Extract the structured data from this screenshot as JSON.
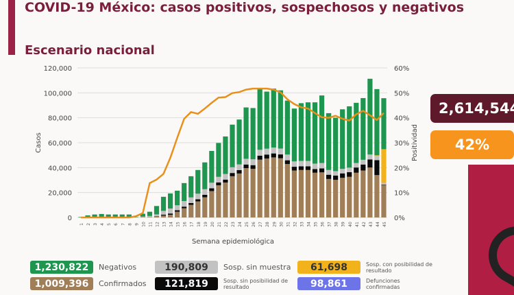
{
  "title": "COVID-19 México: casos positivos, sospechosos y negativos",
  "subtitle": "Escenario nacional",
  "kpis": {
    "total": "2,614,544",
    "positivity": "42%"
  },
  "legend": [
    {
      "value": "1,230,822",
      "label": "Negativos",
      "color": "#1e9650"
    },
    {
      "value": "190,809",
      "label": "Sosp. sin muestra",
      "color": "#c2c2c2"
    },
    {
      "value": "61,698",
      "label": "Sosp. con posibilidad de resultado",
      "color": "#f2b21b"
    },
    {
      "value": "1,009,396",
      "label": "Confirmados",
      "color": "#a07f58"
    },
    {
      "value": "121,819",
      "label": "Sosp. sin posibilidad de resultado",
      "color": "#0a0a0a"
    },
    {
      "value": "98,861",
      "label": "Defunciones confirmadas",
      "color": "#6d74e8"
    }
  ],
  "chart_data": {
    "type": "bar",
    "stacked": true,
    "xlabel": "Semana epidemiológica",
    "ylabel": "Casos",
    "y2label": "Positividad",
    "ylim": [
      0,
      120000
    ],
    "y2lim": [
      0,
      60
    ],
    "yticks": [
      "0",
      "20,000",
      "40,000",
      "60,000",
      "80,000",
      "100,000",
      "120,000"
    ],
    "y2ticks": [
      "0%",
      "10%",
      "20%",
      "30%",
      "40%",
      "50%",
      "60%"
    ],
    "categories": [
      1,
      2,
      3,
      4,
      5,
      6,
      7,
      8,
      9,
      10,
      11,
      12,
      13,
      14,
      15,
      16,
      17,
      18,
      19,
      20,
      21,
      22,
      23,
      24,
      25,
      26,
      27,
      28,
      29,
      30,
      31,
      32,
      33,
      34,
      35,
      36,
      37,
      38,
      39,
      40,
      41,
      42,
      43,
      44,
      45
    ],
    "series": [
      {
        "name": "Confirmados",
        "color": "#a07f58",
        "values": [
          0,
          100,
          100,
          100,
          100,
          100,
          100,
          100,
          0,
          400,
          400,
          700,
          1500,
          2200,
          4600,
          7400,
          10100,
          12900,
          16200,
          21200,
          25800,
          28000,
          33100,
          35300,
          39600,
          39000,
          46400,
          47300,
          48200,
          47500,
          42900,
          37700,
          38100,
          38100,
          35900,
          36200,
          30900,
          30200,
          31800,
          32600,
          35900,
          37700,
          40100,
          34000,
          25800
        ]
      },
      {
        "name": "Sosp. sin posibilidad de resultado",
        "color": "#0a0a0a",
        "values": [
          0,
          0,
          0,
          0,
          0,
          0,
          0,
          0,
          0,
          0,
          0,
          300,
          800,
          1000,
          1200,
          1300,
          1500,
          1700,
          2000,
          2200,
          2300,
          2400,
          2600,
          2700,
          2900,
          3000,
          3200,
          3200,
          3200,
          3100,
          3000,
          3000,
          3000,
          3000,
          3000,
          3200,
          3400,
          3400,
          3600,
          3800,
          4200,
          4800,
          6500,
          12000,
          500
        ]
      },
      {
        "name": "Sosp. sin muestra",
        "color": "#c2c2c2",
        "values": [
          0,
          300,
          300,
          300,
          300,
          300,
          300,
          300,
          0,
          300,
          800,
          1500,
          3000,
          4000,
          4000,
          4500,
          4500,
          4500,
          4500,
          4500,
          4500,
          4500,
          4600,
          4600,
          4600,
          4700,
          4700,
          4700,
          4700,
          4700,
          4600,
          4300,
          4300,
          4300,
          4300,
          4300,
          3800,
          3600,
          3600,
          3600,
          3600,
          3700,
          3700,
          3400,
          1500
        ]
      },
      {
        "name": "Sosp. con posibilidad de resultado",
        "color": "#f2b21b",
        "values": [
          0,
          0,
          0,
          0,
          0,
          0,
          0,
          0,
          0,
          0,
          0,
          0,
          0,
          0,
          0,
          0,
          0,
          0,
          0,
          0,
          0,
          0,
          0,
          0,
          0,
          0,
          0,
          0,
          0,
          0,
          0,
          0,
          0,
          0,
          0,
          0,
          0,
          0,
          0,
          0,
          0,
          100,
          200,
          500,
          27000
        ]
      },
      {
        "name": "Negativos",
        "color": "#1e9650",
        "values": [
          400,
          1300,
          2000,
          2400,
          2000,
          2000,
          2000,
          2000,
          300,
          2300,
          3400,
          6700,
          11300,
          12100,
          11700,
          14400,
          17000,
          19000,
          21500,
          25500,
          27200,
          30100,
          34200,
          36000,
          41200,
          41100,
          48700,
          45800,
          47300,
          46700,
          43300,
          42400,
          46300,
          47000,
          49200,
          54200,
          45600,
          42800,
          47800,
          49200,
          48300,
          49500,
          60800,
          53100,
          40900
        ]
      }
    ],
    "line": {
      "name": "Positividad",
      "color": "#e8901c",
      "values": [
        0,
        0,
        0,
        0,
        0,
        0,
        0,
        0,
        0.5,
        1.8,
        13.8,
        15.2,
        17.5,
        24,
        32,
        39.6,
        42.3,
        41.6,
        43.7,
        46,
        48.1,
        48.3,
        49.9,
        50.3,
        51.3,
        51.7,
        51.7,
        51.7,
        51.3,
        50.2,
        47.4,
        45.5,
        44.2,
        43.7,
        41.9,
        40.2,
        40,
        40.8,
        39.6,
        38.9,
        41.4,
        42.8,
        41,
        39.1,
        41.9
      ]
    }
  }
}
